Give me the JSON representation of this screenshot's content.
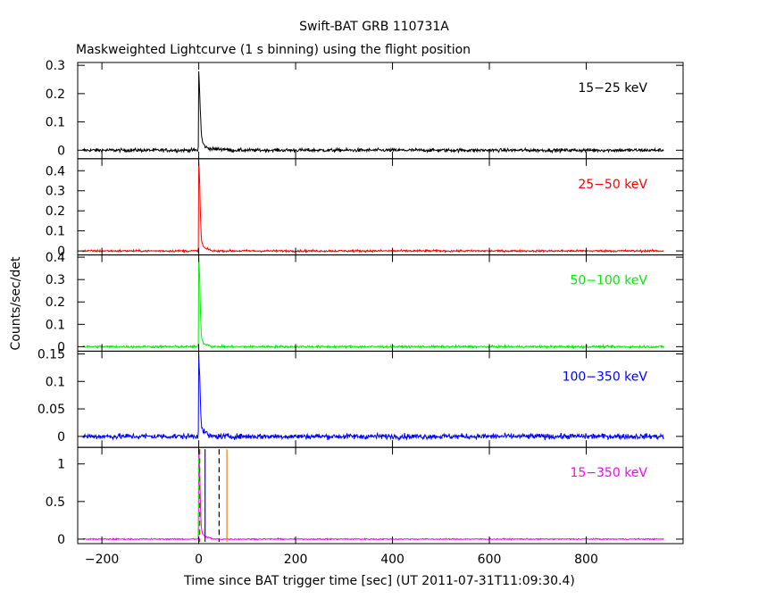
{
  "chart_data": {
    "type": "line",
    "title": "Swift-BAT GRB 110731A",
    "subtitle": "Maskweighted Lightcurve (1 s binning) using the flight position",
    "xlabel": "Time since BAT trigger time [sec] (UT 2011-07-31T11:09:30.4)",
    "ylabel": "Counts/sec/det",
    "xlim": [
      -250,
      1000
    ],
    "xticks": [
      "−200",
      "0",
      "200",
      "400",
      "600",
      "800"
    ],
    "xtick_values": [
      -200,
      0,
      200,
      400,
      600,
      800
    ],
    "grid": false,
    "panels": [
      {
        "name": "15-25 keV",
        "label": "15−25 keV",
        "color": "#000000",
        "ylim": [
          -0.03,
          0.31
        ],
        "yticks": [
          "0",
          "0.1",
          "0.2",
          "0.3"
        ],
        "ytick_values": [
          0,
          0.1,
          0.2,
          0.3
        ],
        "noise": 0.006,
        "peak_points": [
          [
            -1,
            0.01
          ],
          [
            0,
            0.28
          ],
          [
            1,
            0.24
          ],
          [
            2,
            0.2
          ],
          [
            3,
            0.15
          ],
          [
            4,
            0.11
          ],
          [
            5,
            0.07
          ],
          [
            6,
            0.045
          ],
          [
            8,
            0.03
          ],
          [
            10,
            0.02
          ],
          [
            15,
            0.01
          ],
          [
            25,
            0.005
          ]
        ]
      },
      {
        "name": "25-50 keV",
        "label": "25−50 keV",
        "color": "#ff0000",
        "ylim": [
          -0.02,
          0.46
        ],
        "yticks": [
          "0",
          "0.1",
          "0.2",
          "0.3",
          "0.4"
        ],
        "ytick_values": [
          0,
          0.1,
          0.2,
          0.3,
          0.4
        ],
        "noise": 0.005,
        "peak_points": [
          [
            -1,
            0.01
          ],
          [
            0,
            0.44
          ],
          [
            1,
            0.4
          ],
          [
            2,
            0.33
          ],
          [
            3,
            0.22
          ],
          [
            4,
            0.14
          ],
          [
            5,
            0.08
          ],
          [
            6,
            0.05
          ],
          [
            8,
            0.03
          ],
          [
            10,
            0.02
          ],
          [
            15,
            0.01
          ],
          [
            25,
            0.005
          ]
        ]
      },
      {
        "name": "50-100 keV",
        "label": "50−100 keV",
        "color": "#00ee00",
        "ylim": [
          -0.02,
          0.41
        ],
        "yticks": [
          "0",
          "0.1",
          "0.2",
          "0.3",
          "0.4"
        ],
        "ytick_values": [
          0,
          0.1,
          0.2,
          0.3,
          0.4
        ],
        "noise": 0.005,
        "peak_points": [
          [
            -1,
            0.01
          ],
          [
            0,
            0.4
          ],
          [
            1,
            0.36
          ],
          [
            2,
            0.3
          ],
          [
            3,
            0.2
          ],
          [
            4,
            0.12
          ],
          [
            5,
            0.07
          ],
          [
            6,
            0.04
          ],
          [
            8,
            0.025
          ],
          [
            10,
            0.015
          ],
          [
            15,
            0.01
          ],
          [
            25,
            0.005
          ]
        ]
      },
      {
        "name": "100-350 keV",
        "label": "100−350 keV",
        "color": "#0000ff",
        "ylim": [
          -0.02,
          0.155
        ],
        "yticks": [
          "0",
          "0.05",
          "0.1",
          "0.15"
        ],
        "ytick_values": [
          0,
          0.05,
          0.1,
          0.15
        ],
        "noise": 0.005,
        "peak_points": [
          [
            -1,
            0.01
          ],
          [
            0,
            0.15
          ],
          [
            1,
            0.13
          ],
          [
            2,
            0.11
          ],
          [
            3,
            0.08
          ],
          [
            4,
            0.05
          ],
          [
            5,
            0.03
          ],
          [
            6,
            0.015
          ],
          [
            10,
            0.008
          ],
          [
            20,
            0.004
          ]
        ]
      },
      {
        "name": "15-350 keV",
        "label": "15−350 keV",
        "color": "#ff00ff",
        "ylim": [
          -0.06,
          1.22
        ],
        "yticks": [
          "0",
          "0.5",
          "1"
        ],
        "ytick_values": [
          0,
          0.5,
          1
        ],
        "noise": 0.008,
        "peak_points": [
          [
            -1,
            0.02
          ],
          [
            0,
            1.2
          ],
          [
            1,
            1.05
          ],
          [
            2,
            0.85
          ],
          [
            3,
            0.6
          ],
          [
            4,
            0.35
          ],
          [
            5,
            0.2
          ],
          [
            6,
            0.12
          ],
          [
            8,
            0.07
          ],
          [
            10,
            0.05
          ],
          [
            15,
            0.03
          ],
          [
            25,
            0.015
          ]
        ],
        "markers": [
          {
            "x": 0,
            "color": "#00ee00",
            "style": "dashed"
          },
          {
            "x": 2,
            "color": "#ff0000",
            "style": "dashed"
          },
          {
            "x": 13,
            "color": "#0000ff",
            "style": "solid"
          },
          {
            "x": 42,
            "color": "#000000",
            "style": "dashed"
          },
          {
            "x": 58,
            "color": "#ff7f00",
            "style": "solid"
          }
        ]
      }
    ]
  }
}
